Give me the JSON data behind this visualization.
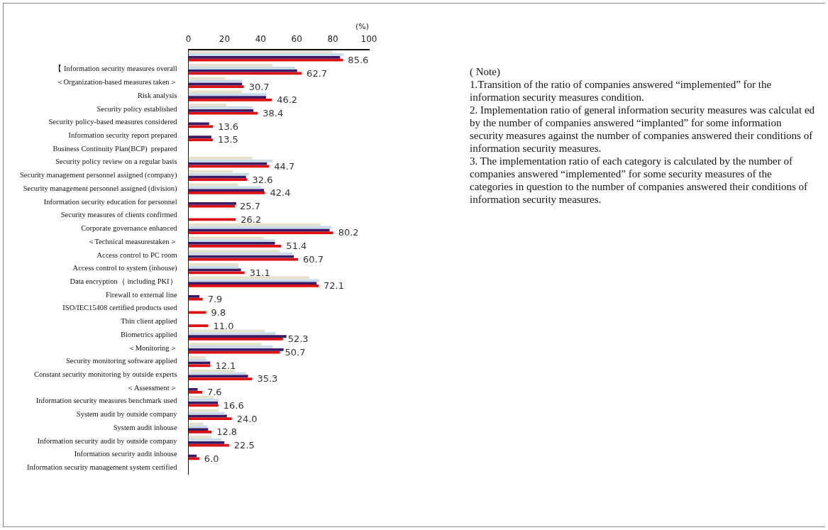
{
  "chart_data": {
    "type": "bar",
    "orientation": "horizontal",
    "xlabel": "(%)",
    "categories": [
      null,
      "【 Information security measures overall",
      "＜Organization-based measures taken＞",
      "Risk analysis",
      "Security policy established",
      "Security policy-based measures considered",
      "Information security report prepared",
      "Business Continuity Plan(BCP)  prepared",
      "Security policy review on a regular basis",
      "Security management personnel assigned (company)",
      "Security management personnel assigned (division)",
      "Information security education for personnel",
      "Security measures of clients confirmed",
      "Corporate governance enhanced",
      "＜Technical measurestaken＞",
      "Access control to PC room",
      "Access control to system (inhouse)",
      "Data encryption（ including PKI）",
      "Firewall to external line",
      "ISO/IEC15408 certified products used",
      "Thin client applied",
      "Biometrics applied",
      "＜Monitoring＞",
      "Security monitoring software applied",
      "Constant security monitoring by outside experts",
      "＜Assessment＞",
      "Information security measures benchmark used",
      "System audit by outside company",
      "System audit inhouse",
      "Information security audit by outside company",
      "Information security audit inhouse",
      "Information security management system certified"
    ],
    "series": [
      {
        "color": "#e6e1cc",
        "values": [
          80,
          46.7,
          20.4,
          29.7,
          21,
          null,
          null,
          null,
          35.4,
          24.6,
          27.3,
          null,
          null,
          73.2,
          41.7,
          50.7,
          27.7,
          67,
          null,
          null,
          null,
          42.3,
          40.5,
          9.5,
          25.9,
          null,
          13.9,
          16.8,
          8.1,
          12.7,
          null,
          null
        ]
      },
      {
        "color": "#c9dbe8",
        "values": [
          86,
          59,
          29.7,
          43.1,
          35.4,
          null,
          null,
          null,
          46.7,
          33.5,
          40.2,
          null,
          null,
          79.2,
          47.9,
          57.6,
          27.7,
          72.6,
          null,
          null,
          null,
          48.3,
          46.8,
          10.3,
          31.9,
          null,
          16.8,
          20.1,
          10.5,
          18.3,
          null,
          null
        ]
      },
      {
        "color": "#3b1a66",
        "values": [
          84,
          60.2,
          29.7,
          43,
          36,
          11.5,
          12.7,
          null,
          43.5,
          31.9,
          41.9,
          26.5,
          null,
          78.2,
          47.9,
          58.4,
          29.1,
          71,
          6.1,
          null,
          null,
          54.3,
          52.7,
          12.1,
          33,
          5.1,
          16.3,
          21.3,
          10.9,
          19.9,
          4.5,
          null
        ]
      },
      {
        "color": "#dd1111",
        "values": [
          85.6,
          62.7,
          30.7,
          46.2,
          38.4,
          13.6,
          13.5,
          null,
          44.7,
          32.6,
          42.4,
          25.7,
          26.2,
          80.2,
          51.4,
          60.7,
          31.1,
          72.1,
          7.9,
          9.8,
          11.0,
          52.3,
          50.7,
          12.1,
          35.3,
          7.6,
          16.6,
          24.0,
          12.8,
          22.5,
          6.0,
          null
        ],
        "value_labels": [
          "85.6",
          "62.7",
          "30.7",
          "46.2",
          "38.4",
          "13.6",
          "13.5",
          null,
          "44.7",
          "32.6",
          "42.4",
          "25.7",
          "26.2",
          "80.2",
          "51.4",
          "60.7",
          "31.1",
          "72.1",
          "7.9",
          "9.8",
          "11.0",
          "52.3",
          "50.7",
          "12.1",
          "35.3",
          "7.6",
          "16.6",
          "24.0",
          "12.8",
          "22.5",
          "6.0",
          null
        ]
      }
    ],
    "xlim": [
      0,
      100
    ],
    "xticks": [
      0,
      20,
      40,
      60,
      80,
      100
    ],
    "grid": false,
    "legend": false,
    "annotations": [
      "( Note)",
      "1.Transition of the ratio of companies answered “implemented” for the information security measures condition.",
      "2.  Implementation ratio of general information security measures was calculat  ed by the number of companies answered “implanted” for some information security measures against the number of companies answered their conditions of information security measures.",
      "3.  The implementation ratio of each category is calculated by the number  of companies answered “implemented” for some security measures of the categories in question to the number of companies answered their conditions of information security measures."
    ]
  }
}
